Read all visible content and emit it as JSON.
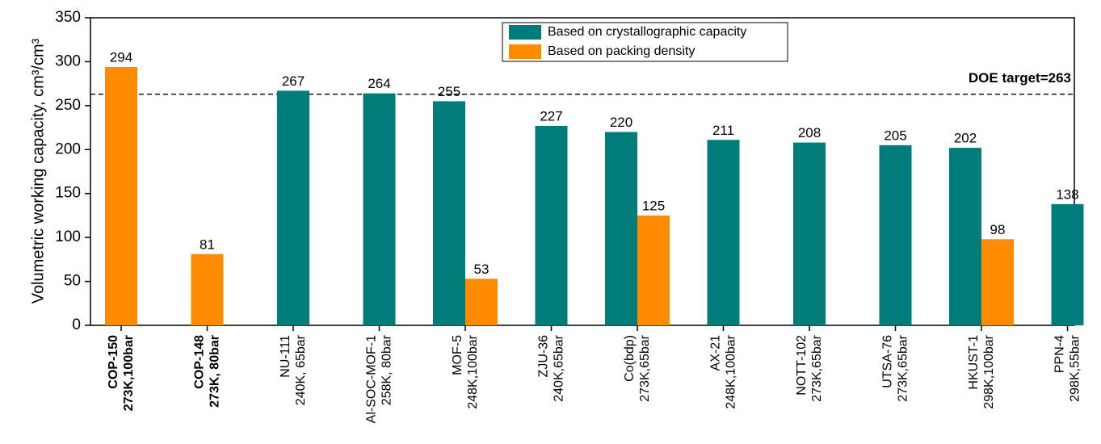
{
  "chart_data": {
    "type": "bar",
    "y_label": "Volumetric working capacity, cm³/cm³",
    "categories": [
      "COP-150",
      "COP-148",
      "NU-111",
      "Al-SOC-MOF-1",
      "MOF-5",
      "ZJU-36",
      "Co(bdp)",
      "AX-21",
      "NOTT-102",
      "UTSA-76",
      "HKUST-1",
      "PPN-4"
    ],
    "conditions": [
      "273K,100bar",
      "273K, 80bar",
      "240K, 65bar",
      "258K, 80bar",
      "248K,100bar",
      "240K,65bar",
      "273K,65bar",
      "248K,100bar",
      "273K,65bar",
      "273K,65bar",
      "298K,100bar",
      "298K,55bar"
    ],
    "bold_labels": [
      true,
      true,
      false,
      false,
      false,
      false,
      false,
      false,
      false,
      false,
      false,
      false
    ],
    "series": [
      {
        "name": "Based on crystallographic capacity",
        "color": "#007c7a",
        "values": [
          null,
          null,
          267,
          264,
          255,
          227,
          220,
          211,
          208,
          205,
          202,
          138
        ]
      },
      {
        "name": "Based on packing density",
        "color": "#ff8c00",
        "values": [
          294,
          81,
          null,
          null,
          53,
          null,
          125,
          null,
          null,
          null,
          98,
          null
        ]
      }
    ],
    "reference_line": {
      "value": 263,
      "label": "DOE target=263"
    },
    "ylim": [
      0,
      350
    ],
    "yticks": [
      0,
      50,
      100,
      150,
      200,
      250,
      300,
      350
    ],
    "legend": "top"
  }
}
